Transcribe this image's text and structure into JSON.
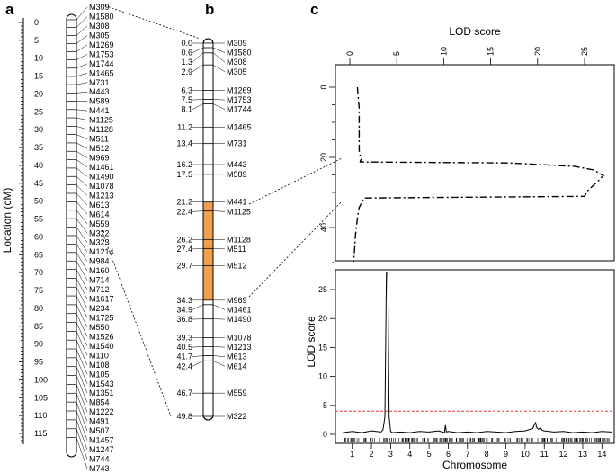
{
  "panels": {
    "a": {
      "letter": "a",
      "ylabel": "Location (cM)",
      "axis_ticks": [
        0,
        5,
        10,
        15,
        20,
        25,
        30,
        35,
        40,
        45,
        50,
        55,
        60,
        65,
        70,
        75,
        80,
        85,
        90,
        95,
        100,
        105,
        110,
        115
      ],
      "markers": [
        "M309",
        "M1580",
        "M308",
        "M305",
        "M1269",
        "M1753",
        "M1744",
        "M1465",
        "M731",
        "M443",
        "M589",
        "M441",
        "M1125",
        "M1128",
        "M511",
        "M512",
        "M969",
        "M1461",
        "M1490",
        "M1078",
        "M1213",
        "M613",
        "M614",
        "M559",
        "M322",
        "M323",
        "M1214",
        "M984",
        "M160",
        "M714",
        "M712",
        "M1617",
        "M234",
        "M1725",
        "M550",
        "M1526",
        "M1540",
        "M110",
        "M108",
        "M105",
        "M1543",
        "M1351",
        "M854",
        "M1222",
        "M491",
        "M507",
        "M1457",
        "M1247",
        "M744",
        "M743"
      ]
    },
    "b": {
      "letter": "b",
      "positions": [
        "0.0",
        "0.6",
        "1.3",
        "2.9",
        "6.3",
        "7.5",
        "8.1",
        "11.2",
        "13.4",
        "16.2",
        "17.5",
        "21.2",
        "22.4",
        "26.2",
        "27.4",
        "29.7",
        "34.3",
        "34.9",
        "36.8",
        "39.3",
        "40.5",
        "41.7",
        "42.4",
        "46.7",
        "49.8"
      ],
      "markers": [
        "M309",
        "M1580",
        "M308",
        "M305",
        "M1269",
        "M1753",
        "M1744",
        "M1465",
        "M731",
        "M443",
        "M589",
        "M441",
        "M1125",
        "M1128",
        "M511",
        "M512",
        "M969",
        "M1461",
        "M1490",
        "M1078",
        "M1213",
        "M613",
        "M614",
        "M559",
        "M322"
      ],
      "highlight_color": "#f0a04b"
    },
    "c": {
      "letter": "c",
      "top_xlabel": "LOD score",
      "bottom_ylabel": "LOD score",
      "bottom_xlabel": "Chromosome",
      "threshold_color": "#e0393e"
    }
  },
  "chart_data": [
    {
      "type": "line",
      "title": "",
      "xlabel": "LOD score",
      "ylabel": "",
      "xlim": [
        0,
        28
      ],
      "ylim": [
        0,
        50
      ],
      "x_ticks": [
        0,
        5,
        10,
        15,
        20,
        25
      ],
      "y_ticks": [
        0,
        20,
        40
      ],
      "series": [
        {
          "x": [
            0.8,
            0.9,
            1.0,
            1.0,
            1.0,
            1.0,
            1.2,
            1.1,
            1.1,
            17.0,
            24.0,
            26.0,
            27.0,
            26.5,
            25.3,
            25.0,
            1.5,
            1.0,
            0.8,
            0.6,
            0.5,
            0.4
          ],
          "y": [
            0,
            3,
            6,
            9,
            13,
            18,
            20.8,
            21.1,
            21.3,
            21.6,
            22.6,
            23.6,
            25.2,
            26.6,
            29.6,
            31.1,
            31.6,
            34.3,
            37.4,
            42.1,
            46.6,
            49.8
          ]
        }
      ]
    },
    {
      "type": "line",
      "title": "",
      "xlabel": "Chromosome",
      "ylabel": "LOD score",
      "xlim": [
        0.5,
        14.5
      ],
      "ylim": [
        0,
        28
      ],
      "x_ticks": [
        1,
        2,
        3,
        4,
        5,
        6,
        7,
        8,
        9,
        10,
        11,
        12,
        13,
        14
      ],
      "y_ticks": [
        0,
        5,
        10,
        15,
        20,
        25
      ],
      "threshold": 4,
      "series": [
        {
          "x": [
            0.5,
            1,
            1.5,
            2,
            2.5,
            2.6,
            2.7,
            2.78,
            2.85,
            2.92,
            3.0,
            3.1,
            3.5,
            4,
            4.5,
            5,
            5.5,
            5.8,
            5.85,
            5.9,
            6,
            6.5,
            7,
            7.5,
            8,
            8.5,
            9,
            9.5,
            10,
            10.4,
            10.5,
            10.55,
            10.6,
            10.7,
            10.8,
            10.9,
            11,
            11.5,
            12,
            12.5,
            13,
            13.5,
            14,
            14.5
          ],
          "y": [
            0.3,
            0.5,
            0.3,
            0.6,
            0.4,
            0.8,
            3,
            28,
            28,
            3,
            0.5,
            0.3,
            0.4,
            0.3,
            0.5,
            0.4,
            0.6,
            0.3,
            1.6,
            0.4,
            0.5,
            0.3,
            0.4,
            0.3,
            0.5,
            0.4,
            0.3,
            0.5,
            0.6,
            1.0,
            1.8,
            2.0,
            1.2,
            0.9,
            1.1,
            0.7,
            0.6,
            0.4,
            0.5,
            0.3,
            0.4,
            0.3,
            0.5,
            0.4
          ]
        }
      ]
    }
  ]
}
